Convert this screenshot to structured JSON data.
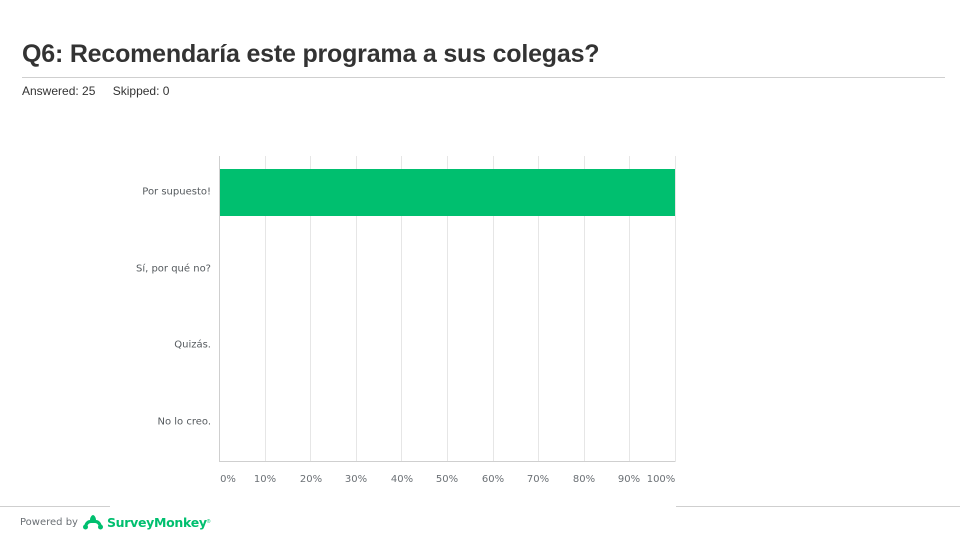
{
  "header": {
    "title": "Q6: Recomendaría este programa a sus colegas?",
    "answered_label": "Answered: 25",
    "skipped_label": "Skipped: 0"
  },
  "colors": {
    "bar": "#00bf6f",
    "brand": "#00bf6f",
    "grid": "#e6e6e6"
  },
  "chart_data": {
    "type": "bar",
    "orientation": "horizontal",
    "title": "Q6: Recomendaría este programa a sus colegas?",
    "categories": [
      "Por supuesto!",
      "Sí, por qué no?",
      "Quizás.",
      "No lo creo."
    ],
    "values": [
      100,
      0,
      0,
      0
    ],
    "unit": "%",
    "xlabel": "",
    "ylabel": "",
    "xlim": [
      0,
      100
    ],
    "xticks": [
      "0%",
      "10%",
      "20%",
      "30%",
      "40%",
      "50%",
      "60%",
      "70%",
      "80%",
      "90%",
      "100%"
    ],
    "grid": true,
    "legend": null,
    "answered": 25,
    "skipped": 0
  },
  "footer": {
    "powered_by": "Powered by",
    "brand": "SurveyMonkey",
    "trademark": "®"
  }
}
